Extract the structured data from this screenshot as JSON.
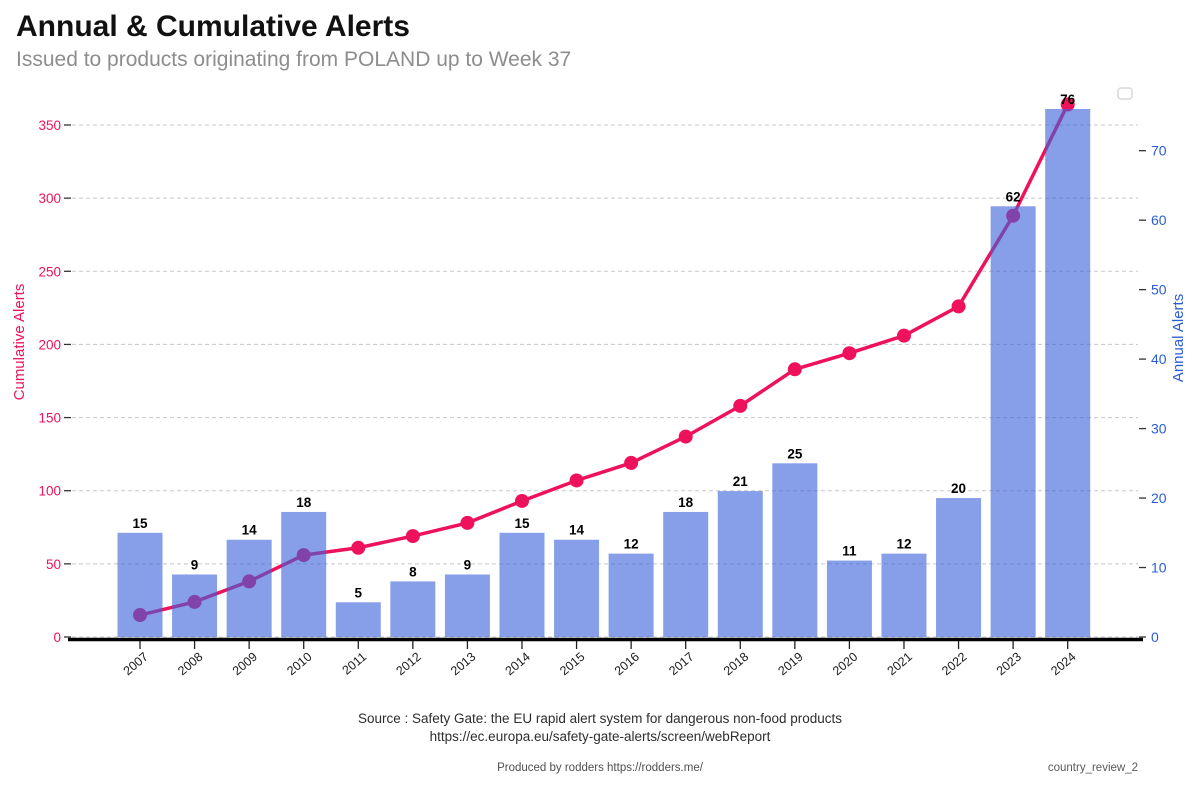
{
  "header": {
    "title": "Annual & Cumulative Alerts",
    "subtitle": "Issued to products originating from POLAND up to Week 37"
  },
  "chart_data": {
    "type": "bar",
    "title": "Annual & Cumulative Alerts",
    "subtitle": "Issued to products originating from POLAND up to Week 37",
    "categories": [
      "2007",
      "2008",
      "2009",
      "2010",
      "2011",
      "2012",
      "2013",
      "2014",
      "2015",
      "2016",
      "2017",
      "2018",
      "2019",
      "2020",
      "2021",
      "2022",
      "2023",
      "2024"
    ],
    "series": [
      {
        "name": "Annual Alerts",
        "type": "bar",
        "axis": "right",
        "values": [
          15,
          9,
          14,
          18,
          5,
          8,
          9,
          15,
          14,
          12,
          18,
          21,
          25,
          11,
          12,
          20,
          62,
          76
        ],
        "data_labels_shown": true
      },
      {
        "name": "Cumulative Alerts",
        "type": "line",
        "axis": "left",
        "values": [
          15,
          24,
          38,
          56,
          61,
          69,
          78,
          93,
          107,
          119,
          137,
          158,
          183,
          194,
          206,
          226,
          288,
          364
        ],
        "data_labels_shown": false
      }
    ],
    "left_axis": {
      "label": "Cumulative Alerts",
      "ticks": [
        0,
        50,
        100,
        150,
        200,
        250,
        300,
        350
      ],
      "range": [
        0,
        390
      ],
      "color": "#ee125c"
    },
    "right_axis": {
      "label": "Annual Alerts",
      "ticks": [
        0,
        10,
        20,
        30,
        40,
        50,
        60,
        70
      ],
      "range": [
        0,
        81
      ],
      "color": "#2a5cd7"
    },
    "grid": true,
    "grid_style": "dashed",
    "legend_position": "top-right",
    "legend_entries": [],
    "colors": {
      "bar": "rgba(61,99,218,0.62)",
      "line": "#ee125c",
      "marker": "#ee125c",
      "grid": "#c8c8c8",
      "axis_line": "#000000",
      "value_label": "#000000",
      "year_label": "#1c1c1c"
    }
  },
  "footer": {
    "source_line1": "Source : Safety Gate: the EU rapid alert system for dangerous non-food products",
    "source_line2": "https://ec.europa.eu/safety-gate-alerts/screen/webReport",
    "produced_by": "Produced by rodders https://rodders.me/",
    "tag": "country_review_2"
  }
}
